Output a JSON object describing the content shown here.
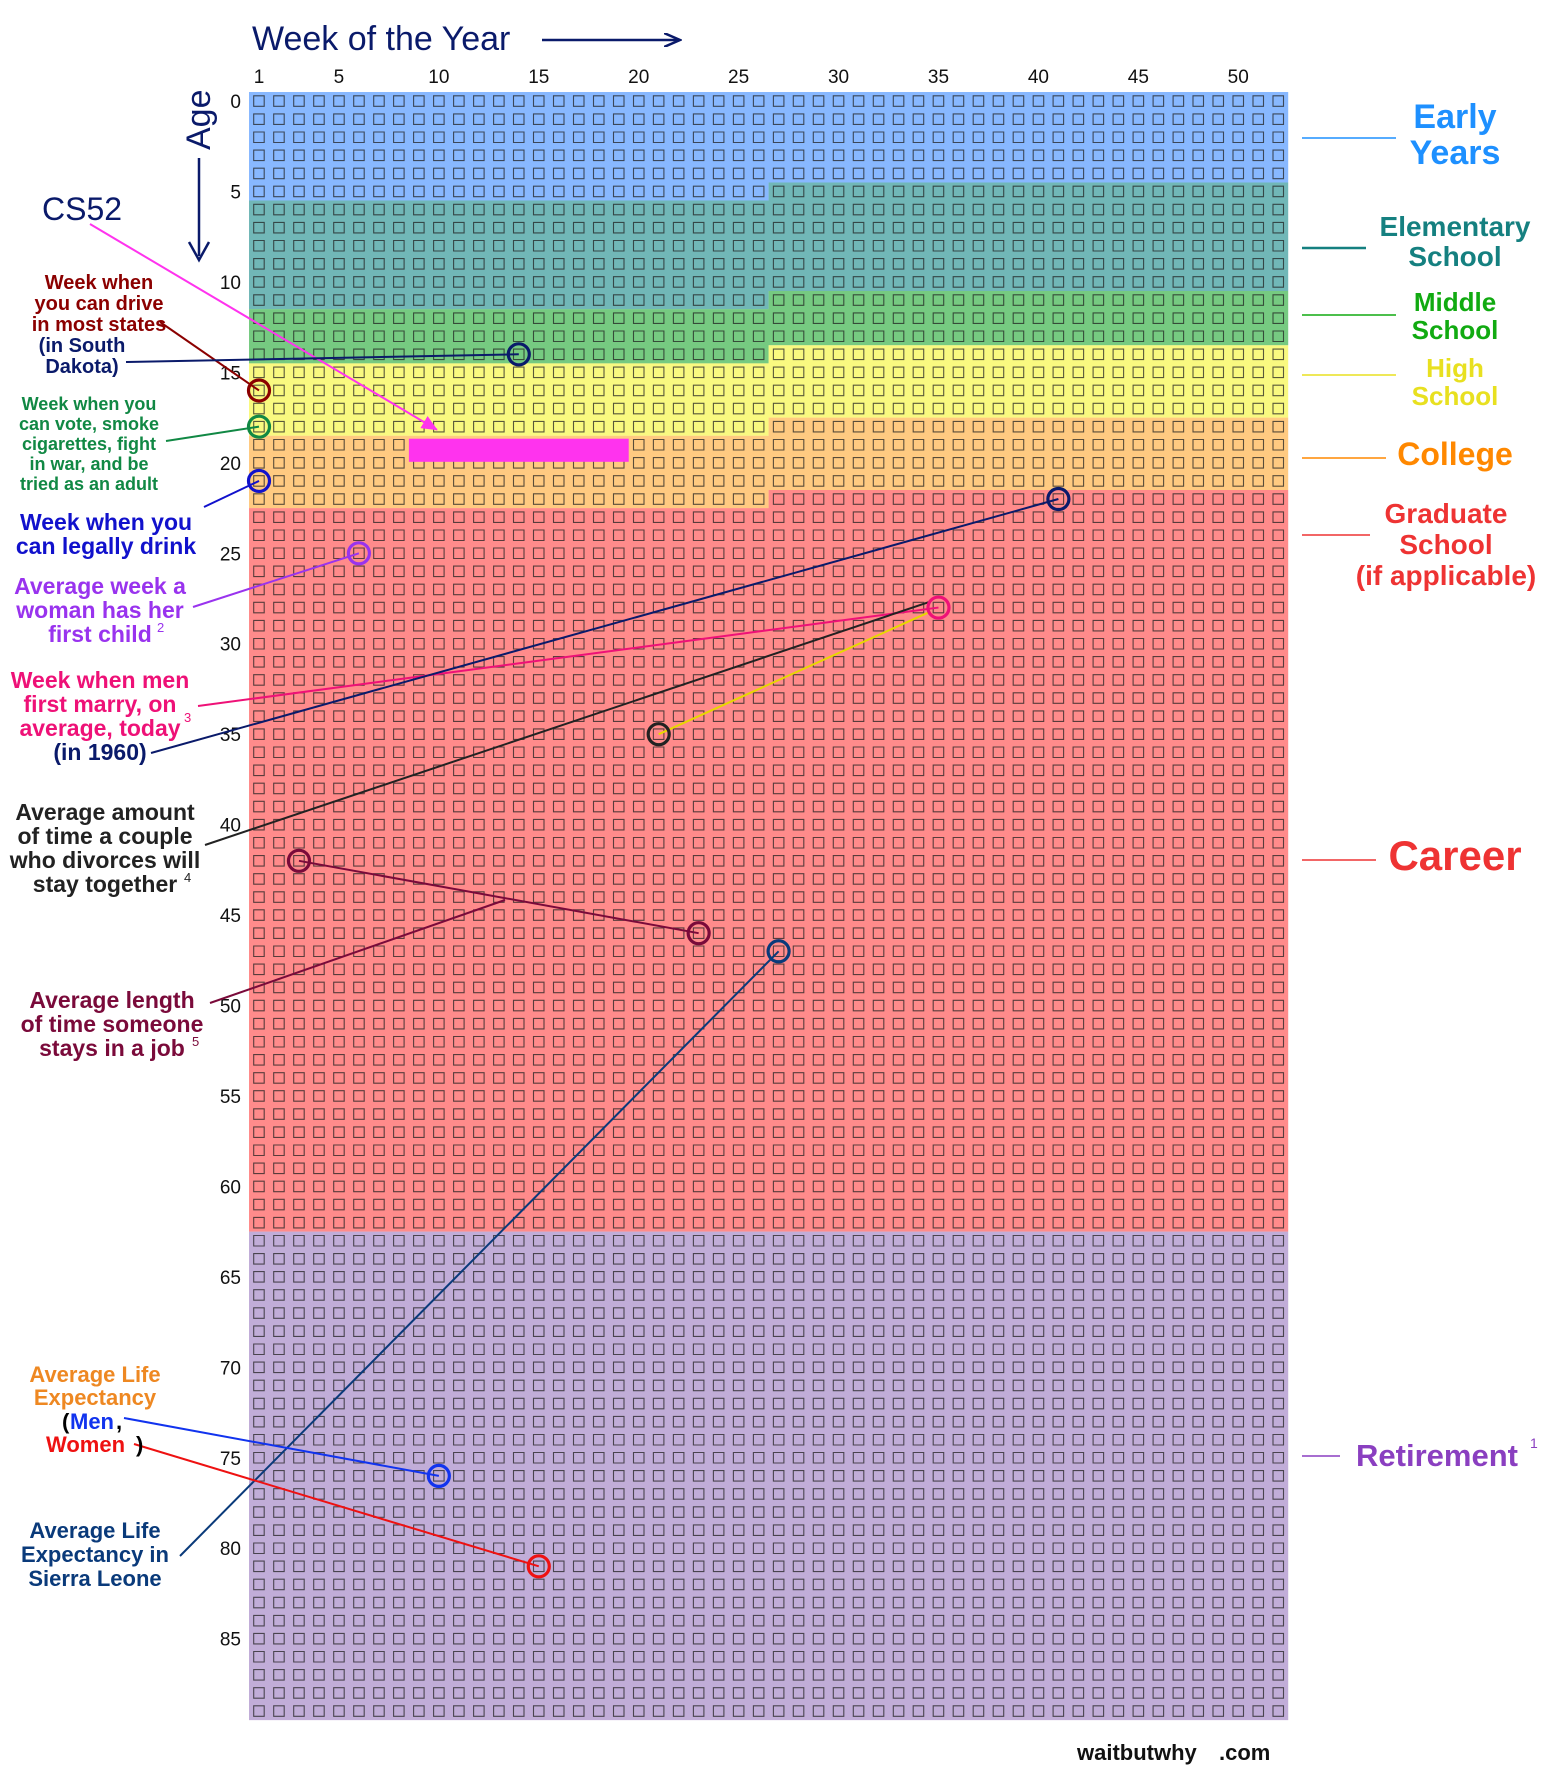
{
  "chart_data": {
    "type": "heatmap",
    "title": "",
    "xlabel": "Week of the Year",
    "ylabel": "Age",
    "x_range": [
      1,
      52
    ],
    "y_range": [
      0,
      90
    ],
    "x_ticks": [
      1,
      5,
      10,
      15,
      20,
      25,
      30,
      35,
      40,
      45,
      50
    ],
    "y_ticks": [
      0,
      5,
      10,
      15,
      20,
      25,
      30,
      35,
      40,
      45,
      50,
      55,
      60,
      65,
      70,
      75,
      80,
      85
    ],
    "bands": [
      {
        "name": "Early Years",
        "color": "#3f8cff",
        "label_color": "#1e90ff",
        "start": [
          0,
          1
        ],
        "end": [
          5,
          26
        ]
      },
      {
        "name": "Elementary School",
        "color": "#1a8a8a",
        "label_color": "#158080",
        "start": [
          5,
          27
        ],
        "end": [
          11,
          26
        ]
      },
      {
        "name": "Middle School",
        "color": "#22aa33",
        "label_color": "#11aa11",
        "start": [
          11,
          27
        ],
        "end": [
          14,
          26
        ]
      },
      {
        "name": "High School",
        "color": "#f5f532",
        "label_color": "#e8e020",
        "start": [
          14,
          27
        ],
        "end": [
          18,
          26
        ]
      },
      {
        "name": "College",
        "color": "#ffaa33",
        "label_color": "#ff8800",
        "start": [
          18,
          27
        ],
        "end": [
          22,
          26
        ]
      },
      {
        "name": "Graduate School (if applicable)",
        "color": "#ff4444",
        "label_color": "#ee3333",
        "start": [
          22,
          27
        ],
        "end": [
          62,
          52
        ]
      },
      {
        "name": "Career",
        "color": "#ff4444",
        "label_color": "#ee3333",
        "start": [
          22,
          27
        ],
        "end": [
          62,
          52
        ]
      },
      {
        "name": "Retirement",
        "color": "#9b7bc0",
        "label_color": "#8a3fc0",
        "start": [
          63,
          1
        ],
        "end": [
          89,
          52
        ]
      }
    ],
    "highlight": {
      "label": "CS52",
      "age": 19,
      "week_start": 9,
      "week_end": 19,
      "color": "#ff33ee"
    },
    "markers": [
      {
        "label": "Week when you can drive in most states",
        "age": 16,
        "week": 1,
        "color": "#8b0000"
      },
      {
        "label": "(in South Dakota)",
        "age": 14,
        "week": 14,
        "color": "#0a1a6a"
      },
      {
        "label": "Week when you can vote, smoke cigarettes, fight in war, and be tried as an adult",
        "age": 18,
        "week": 1,
        "color": "#118844"
      },
      {
        "label": "Week when you can legally drink",
        "age": 21,
        "week": 1,
        "color": "#1111cc"
      },
      {
        "label": "Average week a woman has her first child",
        "age": 25,
        "week": 6,
        "color": "#9933ee"
      },
      {
        "label": "Week when men first marry, on average, today",
        "age": 28,
        "week": 35,
        "color": "#ee1177"
      },
      {
        "label": "(in 1960)",
        "age": 22,
        "week": 41,
        "color": "#0a1a6a"
      },
      {
        "label": "Average amount of time a couple who divorces will stay together",
        "age": 35,
        "week": 21,
        "color": "#222222"
      },
      {
        "label": "Average length of time someone stays in a job",
        "age": 42,
        "week": 3,
        "color": "#7a0a3a"
      },
      {
        "label": "Average length of time someone stays in a job",
        "age": 46,
        "week": 23,
        "color": "#7a0a3a"
      },
      {
        "label": "Average Life Expectancy in Sierra Leone",
        "age": 47,
        "week": 27,
        "color": "#0a3a7a"
      },
      {
        "label": "Average Life Expectancy (Men)",
        "age": 76,
        "week": 10,
        "color": "#1133ee"
      },
      {
        "label": "Average Life Expectancy (Women)",
        "age": 81,
        "week": 15,
        "color": "#ee1111"
      }
    ]
  },
  "axis": {
    "x_title": "Week of the Year",
    "y_title": "Age"
  },
  "labels": {
    "cs52": "CS52",
    "drive": [
      "Week when",
      "you can drive",
      "in most states"
    ],
    "drive_sd": [
      "(in South",
      "Dakota)"
    ],
    "vote": [
      "Week when you",
      "can vote, smoke",
      "cigarettes, fight",
      "in war, and be",
      "tried as an adult"
    ],
    "drink": [
      "Week when you",
      "can legally drink"
    ],
    "child": [
      "Average week a",
      "woman has her",
      "first child"
    ],
    "child_sup": "2",
    "marry": [
      "Week when men",
      "first marry, on",
      "average, today"
    ],
    "marry_sup": "3",
    "marry_1960": "(in 1960)",
    "divorce": [
      "Average amount",
      "of time a couple",
      "who divorces will",
      "stay together"
    ],
    "divorce_sup": "4",
    "job": [
      "Average length",
      "of time someone",
      "stays in a job"
    ],
    "job_sup": "5",
    "life": [
      "Average Life",
      "Expectancy"
    ],
    "life_open": "(",
    "life_men": "Men",
    "life_comma": ",",
    "life_women": "Women",
    "life_close": ")",
    "sierra": [
      "Average Life",
      "Expectancy in",
      "Sierra Leone"
    ],
    "early": [
      "Early",
      "Years"
    ],
    "elementary": [
      "Elementary",
      "School"
    ],
    "middle": [
      "Middle",
      "School"
    ],
    "high": [
      "High",
      "School"
    ],
    "college": "College",
    "grad": [
      "Graduate",
      "School",
      "(if applicable)"
    ],
    "career": "Career",
    "retirement": "Retirement",
    "retirement_sup": "1",
    "watermark_a": "waitbutwhy",
    "watermark_b": ".com"
  }
}
